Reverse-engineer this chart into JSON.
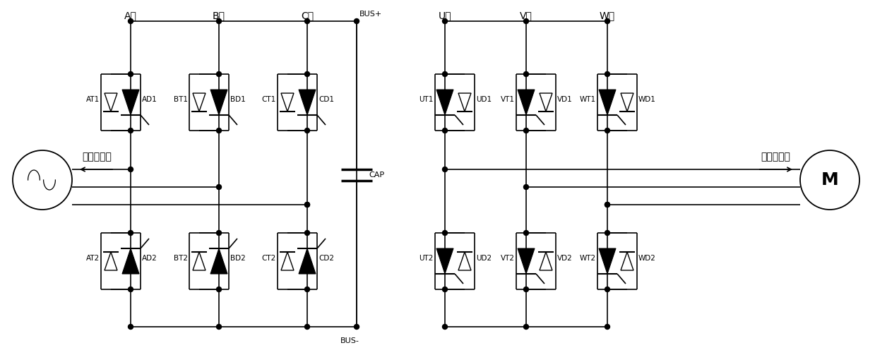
{
  "bg_color": "#ffffff",
  "figsize": [
    12.39,
    5.03
  ],
  "dpi": 100,
  "title": "",
  "phase_labels_left": [
    "A相",
    "B相",
    "C相"
  ],
  "phase_labels_right": [
    "U相",
    "V相",
    "W相"
  ],
  "bus_plus_label": "BUS+",
  "bus_minus_label": "BUS-",
  "cap_label": "CAP",
  "current_label": "电流正方向",
  "motor_label": "M",
  "component_labels_left_top": [
    [
      "AD1",
      "AT1"
    ],
    [
      "BD1",
      "BT1"
    ],
    [
      "CD1",
      "CT1"
    ]
  ],
  "component_labels_left_bot": [
    [
      "AD2",
      "AT2"
    ],
    [
      "BD2",
      "BT2"
    ],
    [
      "CD2",
      "CT2"
    ]
  ],
  "component_labels_right_top": [
    [
      "UT1",
      "UD1"
    ],
    [
      "VT1",
      "VD1"
    ],
    [
      "WT1",
      "WD1"
    ]
  ],
  "component_labels_right_bot": [
    [
      "UT2",
      "UD2"
    ],
    [
      "VT2",
      "VD2"
    ],
    [
      "WT2",
      "WD2"
    ]
  ]
}
